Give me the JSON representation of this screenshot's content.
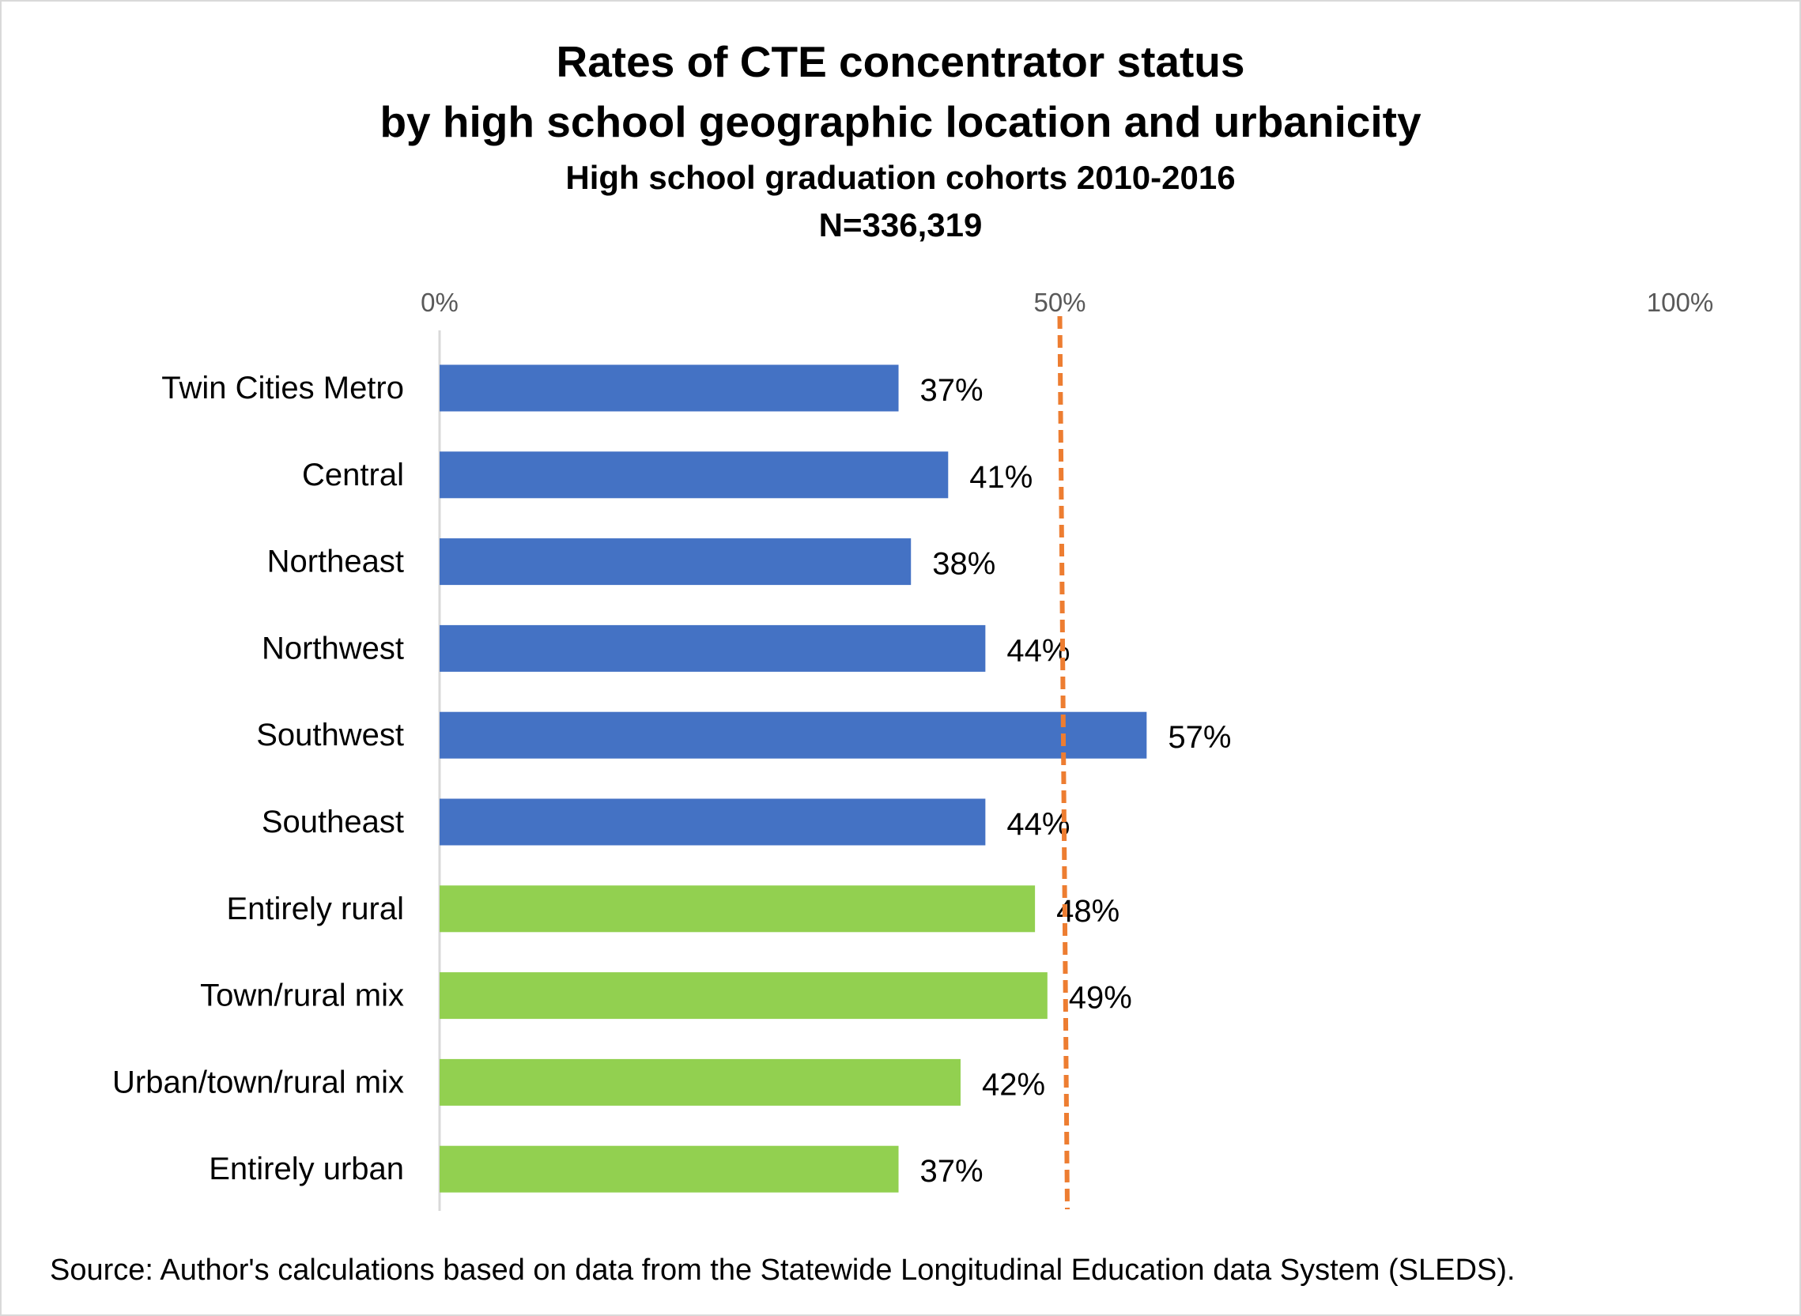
{
  "chart_data": {
    "type": "bar",
    "orientation": "horizontal",
    "title": [
      "Rates of CTE concentrator status",
      "by high school geographic location and urbanicity"
    ],
    "subtitle": [
      "High school graduation cohorts 2010-2016",
      "N=336,319"
    ],
    "categories": [
      "Twin Cities Metro",
      "Central",
      "Northeast",
      "Northwest",
      "Southwest",
      "Southeast",
      "Entirely rural",
      "Town/rural mix",
      "Urban/town/rural mix",
      "Entirely urban"
    ],
    "values": [
      37,
      41,
      38,
      44,
      57,
      44,
      48,
      49,
      42,
      37
    ],
    "data_labels": [
      "37%",
      "41%",
      "38%",
      "44%",
      "57%",
      "44%",
      "48%",
      "49%",
      "42%",
      "37%"
    ],
    "bar_colors": [
      "#4472c4",
      "#4472c4",
      "#4472c4",
      "#4472c4",
      "#4472c4",
      "#4472c4",
      "#92d050",
      "#92d050",
      "#92d050",
      "#92d050"
    ],
    "xlim": [
      0,
      100
    ],
    "x_ticks": [
      0,
      50,
      100
    ],
    "x_tick_labels": [
      "0%",
      "50%",
      "100%"
    ],
    "axis_position": "top",
    "reference_line": {
      "value": 50,
      "color": "#ed7d31",
      "style": "dashed"
    },
    "grid": false,
    "legend": "none"
  },
  "footer": {
    "source": "Source: Author's calculations based on data from the Statewide Longitudinal Education data System (SLEDS)."
  }
}
